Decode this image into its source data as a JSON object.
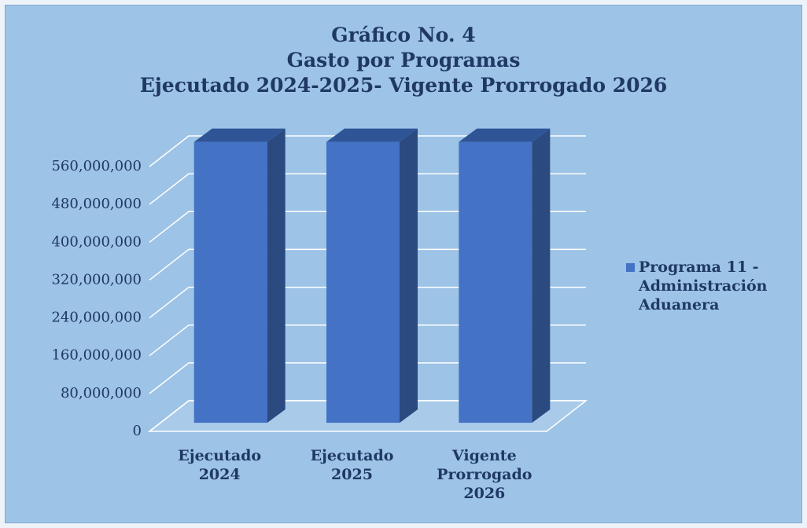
{
  "chart_data": {
    "type": "bar3d",
    "title": [
      "Gráfico No. 4",
      "Gasto por Programas",
      "Ejecutado 2024-2025- Vigente Prorrogado 2026"
    ],
    "categories": [
      "Ejecutado 2024",
      "Ejecutado 2025",
      "Vigente Prorrogado 2026"
    ],
    "series": [
      {
        "name": "Programa 11 - Administración Aduanera",
        "color": "#4472c4",
        "values": [
          594000000,
          594000000,
          594000000
        ]
      }
    ],
    "ylim": [
      0,
      560000000
    ],
    "yticks": [
      0,
      {
        "value": 80000000,
        "label": "80,000,000"
      },
      {
        "value": 160000000,
        "label": "160,000,000"
      },
      {
        "value": 240000000,
        "label": "240,000,000"
      },
      {
        "value": 320000000,
        "label": "320,000,000"
      },
      {
        "value": 400000000,
        "label": "400,000,000"
      },
      {
        "value": 480000000,
        "label": "480,000,000"
      },
      {
        "value": 560000000,
        "label": "560,000,000"
      }
    ],
    "grid": true,
    "legend": "right"
  }
}
